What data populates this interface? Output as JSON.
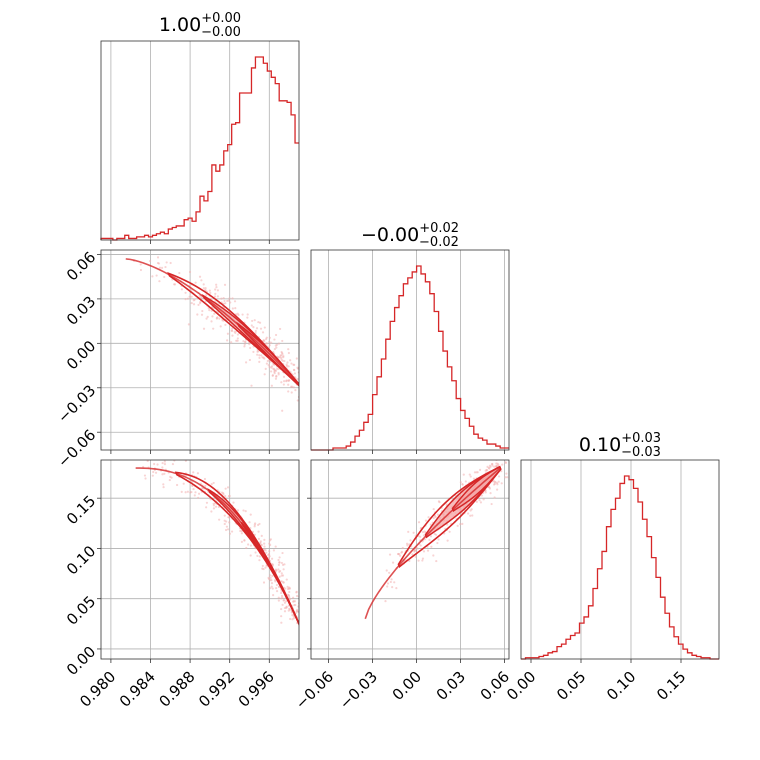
{
  "colors": {
    "main": "#d62728",
    "fill": "#f4a6a6",
    "scatter": "#f2b0b0",
    "grid": "#b0b0b0",
    "frame": "#333333"
  },
  "panels": [
    {
      "id": "p00",
      "title": {
        "main": "1.00",
        "sup": "+0.00",
        "sub": "−0.00"
      }
    },
    {
      "id": "p11",
      "title": {
        "main": "−0.00",
        "sup": "+0.02",
        "sub": "−0.02"
      }
    },
    {
      "id": "p22",
      "title": {
        "main": "0.10",
        "sup": "+0.03",
        "sub": "−0.03"
      }
    }
  ],
  "chart_data": {
    "type": "corner",
    "parameters": [
      {
        "index": 0,
        "range": [
          0.979,
          0.999
        ],
        "ticks": [
          0.98,
          0.984,
          0.988,
          0.992,
          0.996
        ],
        "tick_labels": [
          "0.980",
          "0.984",
          "0.988",
          "0.992",
          "0.996"
        ],
        "histogram": {
          "edges_start": 0.979,
          "bin_width": 0.0004,
          "counts": [
            1,
            1,
            1,
            0,
            1,
            1,
            3,
            1,
            1,
            2,
            2,
            3,
            2,
            3,
            4,
            5,
            4,
            7,
            8,
            9,
            9,
            13,
            14,
            12,
            18,
            28,
            25,
            31,
            48,
            44,
            48,
            57,
            61,
            74,
            75,
            94,
            94,
            94,
            110,
            117,
            117,
            113,
            108,
            104,
            100,
            89,
            89,
            88,
            80,
            62
          ]
        }
      },
      {
        "index": 1,
        "range": [
          -0.072,
          0.063
        ],
        "ticks": [
          -0.06,
          -0.03,
          0.0,
          0.03,
          0.06
        ],
        "tick_labels": [
          "−0.06",
          "−0.03",
          "0.00",
          "0.03",
          "0.06"
        ],
        "histogram": {
          "edges_start": -0.072,
          "bin_width": 0.003,
          "counts": [
            0,
            0,
            0,
            0,
            0,
            1,
            1,
            1,
            2,
            4,
            7,
            10,
            14,
            18,
            28,
            37,
            46,
            56,
            65,
            72,
            78,
            84,
            87,
            90,
            93,
            89,
            85,
            79,
            70,
            60,
            50,
            42,
            35,
            26,
            20,
            16,
            12,
            8,
            6,
            5,
            3,
            3,
            2,
            1,
            1
          ]
        }
      },
      {
        "index": 2,
        "range": [
          -0.01,
          0.188
        ],
        "ticks": [
          0.0,
          0.05,
          0.1,
          0.15
        ],
        "tick_labels": [
          "0.00",
          "0.05",
          "0.10",
          "0.15"
        ],
        "histogram": {
          "edges_start": -0.01,
          "bin_width": 0.0045,
          "counts": [
            0,
            1,
            1,
            1,
            2,
            3,
            5,
            6,
            10,
            12,
            16,
            19,
            21,
            29,
            34,
            43,
            57,
            73,
            87,
            107,
            121,
            130,
            142,
            148,
            145,
            138,
            127,
            113,
            99,
            82,
            66,
            50,
            37,
            26,
            18,
            12,
            8,
            5,
            3,
            2,
            1,
            1,
            0,
            0
          ]
        }
      }
    ],
    "pairs": [
      {
        "x": 0,
        "y": 1,
        "relation": "negative curved ridge; density concentrated near x=0.994–0.999, y=−0.03–0.02"
      },
      {
        "x": 0,
        "y": 2,
        "relation": "decreasing curved ridge from (0.982, 0.18) to (0.999, 0.02)"
      },
      {
        "x": 1,
        "y": 2,
        "relation": "increasing curved ridge from (−0.035, 0.03) to (0.057, 0.18)"
      }
    ]
  }
}
